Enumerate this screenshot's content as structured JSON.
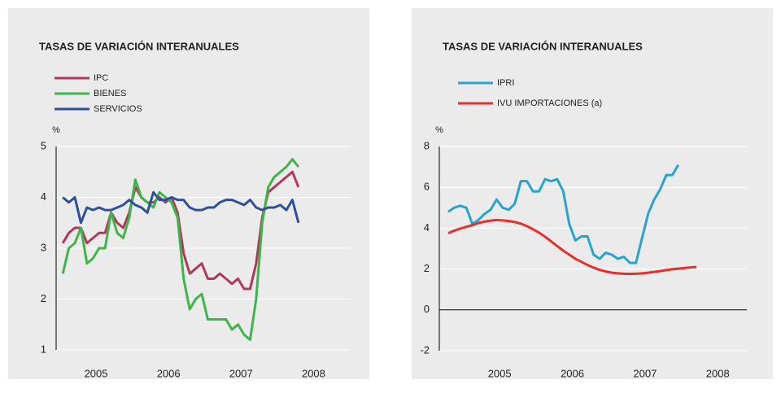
{
  "chart_data": [
    {
      "type": "line",
      "title": "TASAS DE VARIACIÓN INTERANUALES",
      "y_label": "%",
      "x": [
        2005.042,
        2005.125,
        2005.208,
        2005.292,
        2005.375,
        2005.458,
        2005.542,
        2005.625,
        2005.708,
        2005.792,
        2005.875,
        2005.958,
        2006.042,
        2006.125,
        2006.208,
        2006.292,
        2006.375,
        2006.458,
        2006.542,
        2006.625,
        2006.708,
        2006.792,
        2006.875,
        2006.958,
        2007.042,
        2007.125,
        2007.208,
        2007.292,
        2007.375,
        2007.458,
        2007.542,
        2007.625,
        2007.708,
        2007.792,
        2007.875,
        2007.958,
        2008.042,
        2008.125,
        2008.208,
        2008.292
      ],
      "xlim": [
        2004.95,
        2009.0
      ],
      "xticks": [
        {
          "value": 2005.5,
          "label": "2005"
        },
        {
          "value": 2006.5,
          "label": "2006"
        },
        {
          "value": 2007.5,
          "label": "2007"
        },
        {
          "value": 2008.5,
          "label": "2008"
        }
      ],
      "ylim": [
        1,
        5
      ],
      "yticks": [
        1,
        2,
        3,
        4,
        5
      ],
      "grid": true,
      "series": [
        {
          "name": "IPC",
          "color": "#b0385a",
          "values": [
            3.1,
            3.3,
            3.4,
            3.4,
            3.1,
            3.2,
            3.3,
            3.3,
            3.7,
            3.5,
            3.4,
            3.7,
            4.2,
            4.0,
            3.9,
            3.9,
            4.0,
            3.9,
            4.0,
            3.7,
            2.9,
            2.5,
            2.6,
            2.7,
            2.4,
            2.4,
            2.5,
            2.4,
            2.3,
            2.4,
            2.2,
            2.2,
            2.7,
            3.6,
            4.1,
            4.2,
            4.3,
            4.4,
            4.5,
            4.2
          ]
        },
        {
          "name": "BIENES",
          "color": "#3db54a",
          "values": [
            2.5,
            3.0,
            3.1,
            3.4,
            2.7,
            2.8,
            3.0,
            3.0,
            3.7,
            3.3,
            3.2,
            3.6,
            4.35,
            4.0,
            3.9,
            3.8,
            4.1,
            4.0,
            3.9,
            3.6,
            2.4,
            1.8,
            2.0,
            2.1,
            1.6,
            1.6,
            1.6,
            1.6,
            1.4,
            1.5,
            1.3,
            1.2,
            2.0,
            3.5,
            4.2,
            4.4,
            4.5,
            4.6,
            4.75,
            4.6
          ]
        },
        {
          "name": "SERVICIOS",
          "color": "#2f4f9a",
          "values": [
            4.0,
            3.9,
            4.0,
            3.5,
            3.8,
            3.75,
            3.8,
            3.75,
            3.75,
            3.8,
            3.85,
            3.95,
            3.85,
            3.8,
            3.7,
            4.1,
            3.95,
            3.95,
            4.0,
            3.95,
            3.95,
            3.8,
            3.75,
            3.75,
            3.8,
            3.8,
            3.9,
            3.95,
            3.95,
            3.9,
            3.85,
            3.95,
            3.8,
            3.75,
            3.8,
            3.8,
            3.85,
            3.75,
            3.95,
            3.5
          ]
        }
      ]
    },
    {
      "type": "line",
      "title": "TASAS DE VARIACIÓN INTERANUALES",
      "y_label": "%",
      "x": [
        2004.792,
        2004.875,
        2004.958,
        2005.042,
        2005.125,
        2005.208,
        2005.292,
        2005.375,
        2005.458,
        2005.542,
        2005.625,
        2005.708,
        2005.792,
        2005.875,
        2005.958,
        2006.042,
        2006.125,
        2006.208,
        2006.292,
        2006.375,
        2006.458,
        2006.542,
        2006.625,
        2006.708,
        2006.792,
        2006.875,
        2006.958,
        2007.042,
        2007.125,
        2007.208,
        2007.292,
        2007.375,
        2007.458,
        2007.542,
        2007.625,
        2007.708,
        2007.792,
        2007.875,
        2007.958,
        2008.042,
        2008.125,
        2008.208
      ],
      "xlim": [
        2004.67,
        2008.9
      ],
      "xticks": [
        {
          "value": 2005.5,
          "label": "2005"
        },
        {
          "value": 2006.5,
          "label": "2006"
        },
        {
          "value": 2007.5,
          "label": "2007"
        },
        {
          "value": 2008.5,
          "label": "2008"
        }
      ],
      "ylim": [
        -2,
        8
      ],
      "yticks": [
        -2,
        0,
        2,
        4,
        6,
        8
      ],
      "grid": true,
      "series": [
        {
          "name": "IPRI",
          "color": "#2aa3cc",
          "values": [
            4.8,
            5.0,
            5.1,
            5.0,
            4.2,
            4.4,
            4.7,
            4.9,
            5.4,
            5.0,
            4.9,
            5.2,
            6.3,
            6.3,
            5.8,
            5.8,
            6.4,
            6.3,
            6.4,
            5.8,
            4.2,
            3.4,
            3.6,
            3.6,
            2.7,
            2.5,
            2.8,
            2.7,
            2.5,
            2.6,
            2.3,
            2.3,
            3.5,
            4.7,
            5.4,
            5.9,
            6.6,
            6.6,
            7.1,
            null,
            null,
            null
          ]
        },
        {
          "name": "IVU IMPORTACIONES (a)",
          "color": "#e63030",
          "values": [
            3.75,
            3.88,
            3.98,
            4.07,
            4.15,
            4.25,
            4.32,
            4.37,
            4.4,
            4.38,
            4.35,
            4.3,
            4.22,
            4.1,
            3.95,
            3.78,
            3.58,
            3.35,
            3.12,
            2.9,
            2.7,
            2.5,
            2.35,
            2.2,
            2.07,
            1.96,
            1.88,
            1.82,
            1.79,
            1.77,
            1.76,
            1.77,
            1.79,
            1.82,
            1.86,
            1.9,
            1.95,
            1.99,
            2.02,
            2.05,
            2.08,
            2.1
          ]
        }
      ]
    }
  ]
}
